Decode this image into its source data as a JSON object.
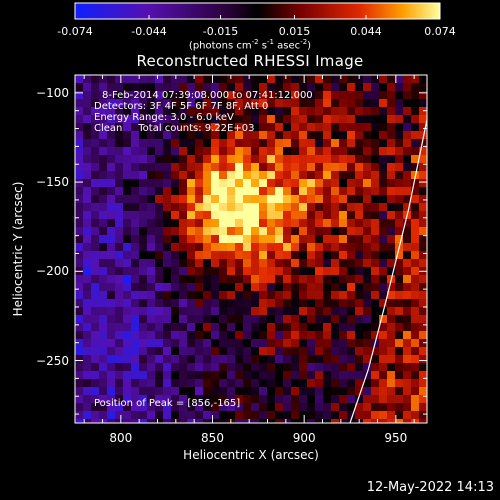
{
  "chart_data": {
    "type": "heatmap",
    "title": "Reconstructed RHESSI Image",
    "xlabel": "Heliocentric X (arcsec)",
    "ylabel": "Heliocentric Y (arcsec)",
    "xlim": [
      775,
      967
    ],
    "ylim": [
      -285,
      -90
    ],
    "x_ticks": [
      "800",
      "850",
      "900",
      "950"
    ],
    "y_ticks": [
      "-100",
      "-150",
      "-200",
      "-250"
    ],
    "colorbar": {
      "ticks": [
        "-0.074",
        "-0.044",
        "-0.015",
        "0.015",
        "0.044",
        "0.074"
      ],
      "min": -0.074,
      "max": 0.074,
      "units_parts": [
        "(photons cm",
        "-2",
        " s",
        "-1",
        " asec",
        "-2",
        ")"
      ]
    },
    "peak": {
      "x": 856,
      "y": -165
    },
    "limb_curve": [
      [
        925,
        -285
      ],
      [
        935,
        -255
      ],
      [
        945,
        -215
      ],
      [
        957,
        -165
      ],
      [
        967,
        -115
      ]
    ],
    "annotations": {
      "time_range": "8-Feb-2014 07:39:08.000 to 07:41:12.000",
      "detectors": "Detectors: 3F 4F 5F 6F 7F 8F, Att 0",
      "energy_range": "Energy Range: 3.0 - 6.0 keV",
      "clean_line": "Clean     Total counts: 9.22E+03",
      "peak_position": "Position of Peak = [856,-165]"
    }
  },
  "timestamp": "12-May-2022 14:13"
}
